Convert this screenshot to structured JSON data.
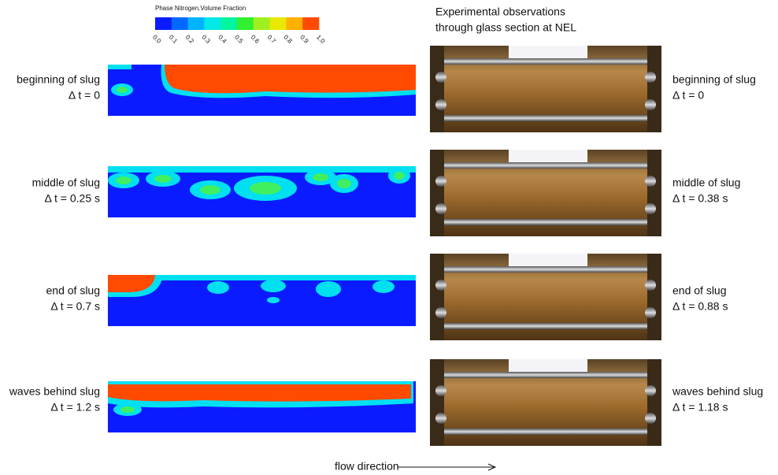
{
  "colorbar": {
    "title": "Phase Nitrogen.Volume Fraction",
    "labels": [
      "0.0",
      "0.1",
      "0.2",
      "0.3",
      "0.4",
      "0.5",
      "0.6",
      "0.7",
      "0.8",
      "0.9",
      "1.0"
    ]
  },
  "heading": [
    "Experimental observations",
    "through glass section at NEL"
  ],
  "rows": [
    {
      "simulation": [
        "beginning of slug",
        "Δ t = 0"
      ],
      "experiment": [
        "beginning  of slug",
        "Δ t = 0"
      ]
    },
    {
      "simulation": [
        "middle of slug",
        "Δ t = 0.25 s"
      ],
      "experiment": [
        "middle of slug",
        "Δ t = 0.38 s"
      ]
    },
    {
      "simulation": [
        "end of slug",
        "Δ t = 0.7 s"
      ],
      "experiment": [
        "end of slug",
        "Δ t = 0.88 s"
      ]
    },
    {
      "simulation": [
        "waves behind slug",
        "Δ t = 1.2 s"
      ],
      "experiment": [
        "waves behind slug",
        "Δ t = 1.18 s"
      ]
    }
  ],
  "footer": "flow direction"
}
